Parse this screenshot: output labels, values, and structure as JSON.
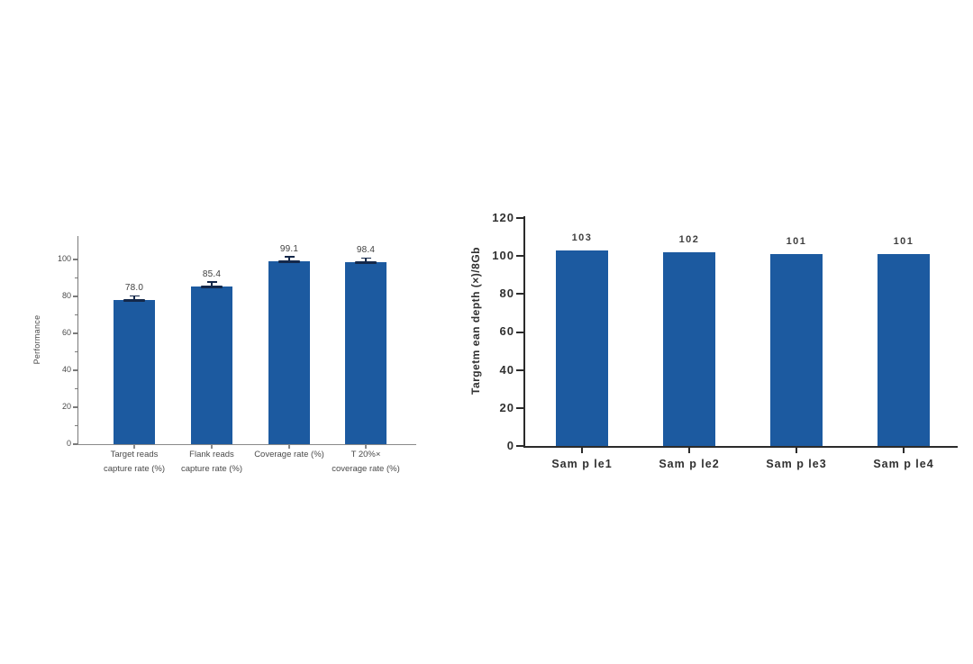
{
  "page": {
    "background_color": "#ffffff",
    "description_colors": {
      "bar_fill": "#1c5aa0",
      "error_bar": "#14284a",
      "left_chart_text": "#4a4a4a",
      "right_chart_text": "#333333",
      "left_axis": "#7a7a7a",
      "right_axis": "#2b2b2b"
    }
  },
  "chart_data": [
    {
      "id": "performance",
      "type": "bar",
      "title": "",
      "xlabel": "",
      "ylabel": "Performance",
      "categories": [
        "Target reads capture rate (%)",
        "Flank reads capture rate (%)",
        "Coverage rate (%)",
        "T 20%× coverage rate (%)"
      ],
      "category_lines": [
        [
          "Target reads",
          "capture rate (%)"
        ],
        [
          "Flank reads",
          "capture rate (%)"
        ],
        [
          "Coverage rate (%)"
        ],
        [
          "T 20%×",
          "coverage rate (%)"
        ]
      ],
      "values": [
        78.0,
        85.4,
        99.1,
        98.4
      ],
      "value_labels": [
        "78.0",
        "85.4",
        "99.1",
        "98.4"
      ],
      "ytick_labels": [
        "0",
        "20",
        "40",
        "60",
        "80",
        "100"
      ],
      "ylim": [
        0,
        100
      ],
      "ytick_step": 20,
      "minor_ticks": true,
      "error_bars": true,
      "grid": false,
      "legend": "none",
      "bar_color": "#1c5aa0"
    },
    {
      "id": "target-mean-depth",
      "type": "bar",
      "title": "",
      "xlabel": "",
      "ylabel": "Targetm ean depth (×)/8Gb",
      "categories": [
        "Sam p le1",
        "Sam p le2",
        "Sam p le3",
        "Sam p le4"
      ],
      "category_lines": [
        [
          "Sam p le1"
        ],
        [
          "Sam p le2"
        ],
        [
          "Sam p le3"
        ],
        [
          "Sam p le4"
        ]
      ],
      "values": [
        103,
        102,
        101,
        101
      ],
      "value_labels": [
        "103",
        "102",
        "101",
        "101"
      ],
      "ytick_labels": [
        "0",
        "20",
        "40",
        "60",
        "80",
        "100",
        "120"
      ],
      "ylim": [
        0,
        120
      ],
      "ytick_step": 20,
      "minor_ticks": false,
      "error_bars": false,
      "grid": false,
      "legend": "none",
      "bar_color": "#1c5aa0"
    }
  ]
}
